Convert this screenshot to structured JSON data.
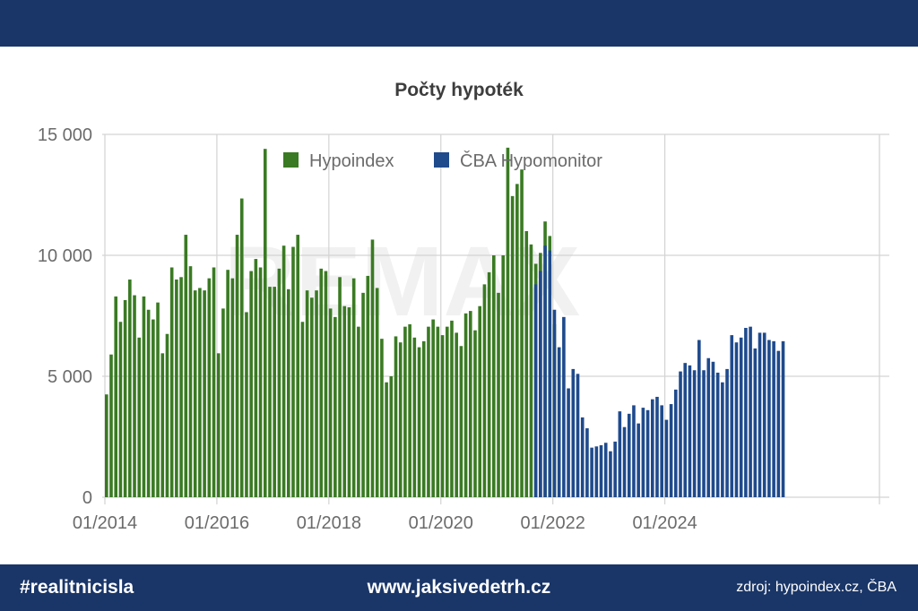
{
  "footer": {
    "hashtag": "#realitnicisla",
    "website": "www.jaksivedetrh.cz",
    "source": "zdroj: hypoindex.cz, ČBA"
  },
  "watermark": "REMAX",
  "colors": {
    "header_bg": "#1a3668",
    "hypoindex": "#3a7a23",
    "cba": "#1f4a8c",
    "grid": "#d3d3d3"
  },
  "chart_data": {
    "type": "bar",
    "title": "Počty hypoték",
    "xlabel": "",
    "ylabel": "",
    "ylim": [
      0,
      15000
    ],
    "yticks": [
      {
        "value": 0,
        "label": "0"
      },
      {
        "value": 5000,
        "label": "5 000"
      },
      {
        "value": 10000,
        "label": "10 000"
      },
      {
        "value": 15000,
        "label": "15 000"
      }
    ],
    "xticks": [
      "01/2014",
      "01/2016",
      "01/2018",
      "01/2020",
      "01/2022",
      "01/2024"
    ],
    "start_month": "2014-01",
    "legend_position": "top-center",
    "grid": true,
    "series": [
      {
        "name": "Hypoindex",
        "start": "2014-01",
        "values": [
          4250,
          5900,
          8300,
          7250,
          8150,
          9000,
          8350,
          6600,
          8300,
          7750,
          7350,
          8050,
          5950,
          6750,
          9500,
          9000,
          9100,
          10850,
          9550,
          8550,
          8650,
          8550,
          9050,
          9500,
          5950,
          7800,
          9400,
          9050,
          10850,
          12350,
          7650,
          9350,
          9850,
          9500,
          14400,
          8700,
          8700,
          9450,
          10400,
          8600,
          10350,
          10850,
          7250,
          8550,
          8250,
          8550,
          9450,
          9350,
          7800,
          7450,
          9100,
          7900,
          7850,
          9050,
          7050,
          8450,
          9150,
          10650,
          8650,
          6550,
          4750,
          5000,
          6650,
          6400,
          7050,
          7150,
          6600,
          6200,
          6450,
          7050,
          7350,
          7050,
          6700,
          7050,
          7300,
          6800,
          6250,
          7600,
          7700,
          6900,
          7900,
          8800,
          9300,
          10000,
          8450,
          10000,
          14450,
          12450,
          12950,
          13550,
          11000,
          10450,
          9650,
          10100,
          11400,
          10800,
          7150
        ]
      },
      {
        "name": "ČBA Hypomonitor",
        "start": "2021-09",
        "values": [
          8800,
          9350,
          10400,
          10200,
          7750,
          6200,
          7450,
          4500,
          5300,
          5100,
          3300,
          2850,
          2050,
          2100,
          2150,
          2250,
          1900,
          2300,
          3550,
          2900,
          3450,
          3800,
          3050,
          3700,
          3600,
          4050,
          4150,
          3800,
          3200,
          3850,
          4450,
          5200,
          5550,
          5450,
          5250,
          6500,
          5250,
          5750,
          5600,
          5150,
          4750,
          5300,
          6700,
          6400,
          6600,
          7000,
          7050,
          6150,
          6800,
          6800,
          6500,
          6450,
          6050,
          6450
        ]
      }
    ]
  }
}
